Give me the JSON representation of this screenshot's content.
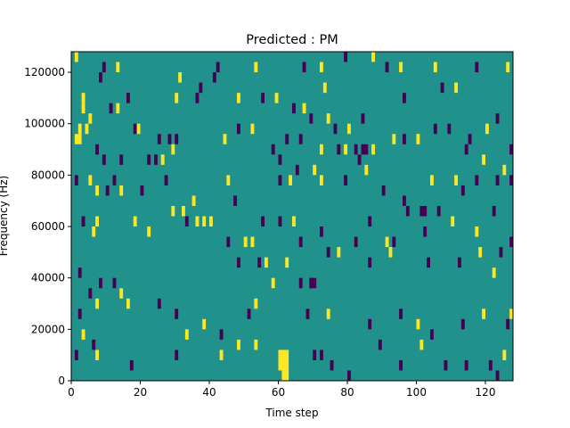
{
  "chart_data": {
    "type": "heatmap",
    "title": "Predicted : PM",
    "xlabel": "Time step",
    "ylabel": "Frequency (Hz)",
    "xlim": [
      0,
      128
    ],
    "ylim": [
      0,
      128000
    ],
    "xticks": [
      0,
      20,
      40,
      60,
      80,
      100,
      120
    ],
    "yticks": [
      0,
      20000,
      40000,
      60000,
      80000,
      100000,
      120000
    ],
    "xtick_labels": [
      "0",
      "20",
      "40",
      "60",
      "80",
      "100",
      "120"
    ],
    "ytick_labels": [
      "0",
      "20000",
      "40000",
      "60000",
      "80000",
      "100000",
      "120000"
    ],
    "grid": false,
    "colormap": "viridis",
    "colors": {
      "background": "#21918c",
      "low": "#440154",
      "high": "#fde725"
    },
    "cell_height": 4000,
    "sparse_cells": [
      {
        "x": 1,
        "y": 124000,
        "v": "high"
      },
      {
        "x": 9,
        "y": 120000,
        "v": "low"
      },
      {
        "x": 13,
        "y": 120000,
        "v": "high"
      },
      {
        "x": 8,
        "y": 116000,
        "v": "low"
      },
      {
        "x": 31,
        "y": 116000,
        "v": "high"
      },
      {
        "x": 41,
        "y": 116000,
        "v": "low"
      },
      {
        "x": 42,
        "y": 120000,
        "v": "low"
      },
      {
        "x": 53,
        "y": 120000,
        "v": "high"
      },
      {
        "x": 67,
        "y": 120000,
        "v": "low"
      },
      {
        "x": 72,
        "y": 120000,
        "v": "high"
      },
      {
        "x": 79,
        "y": 124000,
        "v": "low"
      },
      {
        "x": 87,
        "y": 124000,
        "v": "high"
      },
      {
        "x": 91,
        "y": 120000,
        "v": "low"
      },
      {
        "x": 95,
        "y": 120000,
        "v": "high"
      },
      {
        "x": 105,
        "y": 120000,
        "v": "high"
      },
      {
        "x": 117,
        "y": 120000,
        "v": "low"
      },
      {
        "x": 126,
        "y": 120000,
        "v": "high"
      },
      {
        "x": 3,
        "y": 108000,
        "v": "high"
      },
      {
        "x": 3,
        "y": 104000,
        "v": "high"
      },
      {
        "x": 16,
        "y": 108000,
        "v": "low"
      },
      {
        "x": 11,
        "y": 104000,
        "v": "low"
      },
      {
        "x": 13,
        "y": 104000,
        "v": "high"
      },
      {
        "x": 30,
        "y": 108000,
        "v": "high"
      },
      {
        "x": 36,
        "y": 108000,
        "v": "low"
      },
      {
        "x": 37,
        "y": 112000,
        "v": "low"
      },
      {
        "x": 48,
        "y": 108000,
        "v": "high"
      },
      {
        "x": 55,
        "y": 108000,
        "v": "low"
      },
      {
        "x": 59,
        "y": 108000,
        "v": "high"
      },
      {
        "x": 64,
        "y": 104000,
        "v": "low"
      },
      {
        "x": 67,
        "y": 104000,
        "v": "high"
      },
      {
        "x": 73,
        "y": 112000,
        "v": "high"
      },
      {
        "x": 96,
        "y": 108000,
        "v": "low"
      },
      {
        "x": 107,
        "y": 112000,
        "v": "low"
      },
      {
        "x": 111,
        "y": 112000,
        "v": "high"
      },
      {
        "x": 2,
        "y": 96000,
        "v": "high"
      },
      {
        "x": 4,
        "y": 96000,
        "v": "high"
      },
      {
        "x": 5,
        "y": 100000,
        "v": "high"
      },
      {
        "x": 18,
        "y": 96000,
        "v": "low"
      },
      {
        "x": 19,
        "y": 96000,
        "v": "high"
      },
      {
        "x": 25,
        "y": 92000,
        "v": "low"
      },
      {
        "x": 28,
        "y": 92000,
        "v": "low"
      },
      {
        "x": 30,
        "y": 92000,
        "v": "low"
      },
      {
        "x": 44,
        "y": 92000,
        "v": "high"
      },
      {
        "x": 48,
        "y": 96000,
        "v": "low"
      },
      {
        "x": 52,
        "y": 96000,
        "v": "high"
      },
      {
        "x": 62,
        "y": 92000,
        "v": "low"
      },
      {
        "x": 66,
        "y": 92000,
        "v": "low"
      },
      {
        "x": 69,
        "y": 100000,
        "v": "low"
      },
      {
        "x": 74,
        "y": 100000,
        "v": "high"
      },
      {
        "x": 76,
        "y": 96000,
        "v": "low"
      },
      {
        "x": 80,
        "y": 96000,
        "v": "high"
      },
      {
        "x": 84,
        "y": 100000,
        "v": "low"
      },
      {
        "x": 93,
        "y": 92000,
        "v": "high"
      },
      {
        "x": 96,
        "y": 92000,
        "v": "low"
      },
      {
        "x": 100,
        "y": 92000,
        "v": "high"
      },
      {
        "x": 105,
        "y": 96000,
        "v": "low"
      },
      {
        "x": 109,
        "y": 96000,
        "v": "low"
      },
      {
        "x": 115,
        "y": 92000,
        "v": "low"
      },
      {
        "x": 120,
        "y": 96000,
        "v": "high"
      },
      {
        "x": 123,
        "y": 100000,
        "v": "low"
      },
      {
        "x": 7,
        "y": 88000,
        "v": "low"
      },
      {
        "x": 9,
        "y": 84000,
        "v": "low"
      },
      {
        "x": 14,
        "y": 84000,
        "v": "low"
      },
      {
        "x": 22,
        "y": 84000,
        "v": "low"
      },
      {
        "x": 24,
        "y": 84000,
        "v": "low"
      },
      {
        "x": 26,
        "y": 84000,
        "v": "high"
      },
      {
        "x": 29,
        "y": 88000,
        "v": "high"
      },
      {
        "x": 58,
        "y": 88000,
        "v": "low"
      },
      {
        "x": 60,
        "y": 84000,
        "v": "low"
      },
      {
        "x": 72,
        "y": 88000,
        "v": "high"
      },
      {
        "x": 77,
        "y": 88000,
        "v": "low"
      },
      {
        "x": 79,
        "y": 88000,
        "v": "high"
      },
      {
        "x": 82,
        "y": 88000,
        "v": "low"
      },
      {
        "x": 83,
        "y": 84000,
        "v": "low"
      },
      {
        "x": 87,
        "y": 88000,
        "v": "high"
      },
      {
        "x": 114,
        "y": 88000,
        "v": "low"
      },
      {
        "x": 119,
        "y": 84000,
        "v": "high"
      },
      {
        "x": 127,
        "y": 88000,
        "v": "low"
      },
      {
        "x": 1,
        "y": 76000,
        "v": "low"
      },
      {
        "x": 5,
        "y": 76000,
        "v": "high"
      },
      {
        "x": 7,
        "y": 72000,
        "v": "high"
      },
      {
        "x": 10,
        "y": 72000,
        "v": "low"
      },
      {
        "x": 12,
        "y": 76000,
        "v": "low"
      },
      {
        "x": 14,
        "y": 72000,
        "v": "high"
      },
      {
        "x": 20,
        "y": 72000,
        "v": "low"
      },
      {
        "x": 27,
        "y": 76000,
        "v": "low"
      },
      {
        "x": 35,
        "y": 68000,
        "v": "high"
      },
      {
        "x": 45,
        "y": 76000,
        "v": "high"
      },
      {
        "x": 47,
        "y": 68000,
        "v": "low"
      },
      {
        "x": 60,
        "y": 76000,
        "v": "low"
      },
      {
        "x": 63,
        "y": 76000,
        "v": "high"
      },
      {
        "x": 65,
        "y": 80000,
        "v": "low"
      },
      {
        "x": 70,
        "y": 80000,
        "v": "high"
      },
      {
        "x": 72,
        "y": 76000,
        "v": "high"
      },
      {
        "x": 79,
        "y": 76000,
        "v": "low"
      },
      {
        "x": 85,
        "y": 80000,
        "v": "high"
      },
      {
        "x": 90,
        "y": 72000,
        "v": "low"
      },
      {
        "x": 96,
        "y": 68000,
        "v": "low"
      },
      {
        "x": 104,
        "y": 76000,
        "v": "high"
      },
      {
        "x": 111,
        "y": 76000,
        "v": "high"
      },
      {
        "x": 113,
        "y": 72000,
        "v": "low"
      },
      {
        "x": 117,
        "y": 76000,
        "v": "low"
      },
      {
        "x": 123,
        "y": 76000,
        "v": "low"
      },
      {
        "x": 125,
        "y": 80000,
        "v": "high"
      },
      {
        "x": 127,
        "y": 76000,
        "v": "low"
      },
      {
        "x": 3,
        "y": 60000,
        "v": "low"
      },
      {
        "x": 6,
        "y": 56000,
        "v": "high"
      },
      {
        "x": 7,
        "y": 60000,
        "v": "high"
      },
      {
        "x": 18,
        "y": 60000,
        "v": "high"
      },
      {
        "x": 22,
        "y": 56000,
        "v": "high"
      },
      {
        "x": 29,
        "y": 64000,
        "v": "high"
      },
      {
        "x": 32,
        "y": 64000,
        "v": "high"
      },
      {
        "x": 33,
        "y": 60000,
        "v": "low"
      },
      {
        "x": 36,
        "y": 60000,
        "v": "high"
      },
      {
        "x": 38,
        "y": 60000,
        "v": "high"
      },
      {
        "x": 40,
        "y": 60000,
        "v": "high"
      },
      {
        "x": 45,
        "y": 52000,
        "v": "low"
      },
      {
        "x": 50,
        "y": 52000,
        "v": "high"
      },
      {
        "x": 52,
        "y": 52000,
        "v": "high"
      },
      {
        "x": 55,
        "y": 60000,
        "v": "low"
      },
      {
        "x": 60,
        "y": 60000,
        "v": "low"
      },
      {
        "x": 64,
        "y": 60000,
        "v": "high"
      },
      {
        "x": 66,
        "y": 52000,
        "v": "low"
      },
      {
        "x": 72,
        "y": 56000,
        "v": "low"
      },
      {
        "x": 82,
        "y": 52000,
        "v": "low"
      },
      {
        "x": 86,
        "y": 60000,
        "v": "low"
      },
      {
        "x": 91,
        "y": 52000,
        "v": "high"
      },
      {
        "x": 93,
        "y": 52000,
        "v": "low"
      },
      {
        "x": 97,
        "y": 64000,
        "v": "low"
      },
      {
        "x": 102,
        "y": 56000,
        "v": "low"
      },
      {
        "x": 106,
        "y": 64000,
        "v": "low"
      },
      {
        "x": 110,
        "y": 60000,
        "v": "high"
      },
      {
        "x": 117,
        "y": 56000,
        "v": "high"
      },
      {
        "x": 122,
        "y": 64000,
        "v": "low"
      },
      {
        "x": 127,
        "y": 52000,
        "v": "low"
      },
      {
        "x": 2,
        "y": 40000,
        "v": "low"
      },
      {
        "x": 5,
        "y": 32000,
        "v": "low"
      },
      {
        "x": 8,
        "y": 36000,
        "v": "low"
      },
      {
        "x": 12,
        "y": 36000,
        "v": "low"
      },
      {
        "x": 14,
        "y": 32000,
        "v": "high"
      },
      {
        "x": 48,
        "y": 44000,
        "v": "low"
      },
      {
        "x": 54,
        "y": 44000,
        "v": "low"
      },
      {
        "x": 56,
        "y": 44000,
        "v": "high"
      },
      {
        "x": 58,
        "y": 36000,
        "v": "high"
      },
      {
        "x": 62,
        "y": 44000,
        "v": "high"
      },
      {
        "x": 66,
        "y": 36000,
        "v": "low"
      },
      {
        "x": 69,
        "y": 36000,
        "v": "low"
      },
      {
        "x": 74,
        "y": 48000,
        "v": "low"
      },
      {
        "x": 77,
        "y": 48000,
        "v": "high"
      },
      {
        "x": 86,
        "y": 44000,
        "v": "low"
      },
      {
        "x": 92,
        "y": 48000,
        "v": "high"
      },
      {
        "x": 103,
        "y": 44000,
        "v": "low"
      },
      {
        "x": 112,
        "y": 44000,
        "v": "low"
      },
      {
        "x": 118,
        "y": 48000,
        "v": "high"
      },
      {
        "x": 122,
        "y": 40000,
        "v": "high"
      },
      {
        "x": 124,
        "y": 48000,
        "v": "low"
      },
      {
        "x": 2,
        "y": 24000,
        "v": "low"
      },
      {
        "x": 3,
        "y": 16000,
        "v": "high"
      },
      {
        "x": 7,
        "y": 28000,
        "v": "high"
      },
      {
        "x": 16,
        "y": 28000,
        "v": "high"
      },
      {
        "x": 25,
        "y": 28000,
        "v": "low"
      },
      {
        "x": 30,
        "y": 24000,
        "v": "low"
      },
      {
        "x": 33,
        "y": 16000,
        "v": "high"
      },
      {
        "x": 38,
        "y": 20000,
        "v": "high"
      },
      {
        "x": 43,
        "y": 16000,
        "v": "low"
      },
      {
        "x": 48,
        "y": 12000,
        "v": "high"
      },
      {
        "x": 51,
        "y": 24000,
        "v": "low"
      },
      {
        "x": 53,
        "y": 28000,
        "v": "high"
      },
      {
        "x": 68,
        "y": 24000,
        "v": "low"
      },
      {
        "x": 74,
        "y": 24000,
        "v": "high"
      },
      {
        "x": 86,
        "y": 20000,
        "v": "low"
      },
      {
        "x": 89,
        "y": 12000,
        "v": "low"
      },
      {
        "x": 95,
        "y": 24000,
        "v": "low"
      },
      {
        "x": 100,
        "y": 20000,
        "v": "high"
      },
      {
        "x": 104,
        "y": 16000,
        "v": "low"
      },
      {
        "x": 113,
        "y": 20000,
        "v": "low"
      },
      {
        "x": 119,
        "y": 24000,
        "v": "high"
      },
      {
        "x": 126,
        "y": 20000,
        "v": "low"
      },
      {
        "x": 127,
        "y": 24000,
        "v": "high"
      },
      {
        "x": 1,
        "y": 8000,
        "v": "low"
      },
      {
        "x": 6,
        "y": 12000,
        "v": "low"
      },
      {
        "x": 7,
        "y": 8000,
        "v": "high"
      },
      {
        "x": 17,
        "y": 4000,
        "v": "low"
      },
      {
        "x": 30,
        "y": 8000,
        "v": "low"
      },
      {
        "x": 43,
        "y": 8000,
        "v": "high"
      },
      {
        "x": 53,
        "y": 12000,
        "v": "high"
      },
      {
        "x": 70,
        "y": 8000,
        "v": "low"
      },
      {
        "x": 72,
        "y": 8000,
        "v": "low"
      },
      {
        "x": 75,
        "y": 4000,
        "v": "low"
      },
      {
        "x": 80,
        "y": 0,
        "v": "low"
      },
      {
        "x": 95,
        "y": 4000,
        "v": "low"
      },
      {
        "x": 101,
        "y": 12000,
        "v": "high"
      },
      {
        "x": 108,
        "y": 4000,
        "v": "low"
      },
      {
        "x": 114,
        "y": 4000,
        "v": "low"
      },
      {
        "x": 121,
        "y": 4000,
        "v": "low"
      },
      {
        "x": 123,
        "y": 0,
        "v": "low"
      },
      {
        "x": 125,
        "y": 8000,
        "v": "high"
      }
    ],
    "blocks": [
      {
        "x": 1,
        "w": 2,
        "y": 92000,
        "h": 4000,
        "v": "high"
      },
      {
        "x": 60,
        "w": 3,
        "y": 4000,
        "h": 8000,
        "v": "high"
      },
      {
        "x": 61,
        "w": 2,
        "y": 0,
        "h": 4000,
        "v": "high"
      },
      {
        "x": 84,
        "w": 2,
        "y": 88000,
        "h": 4000,
        "v": "low"
      },
      {
        "x": 101,
        "w": 2,
        "y": 64000,
        "h": 4000,
        "v": "low"
      },
      {
        "x": 69,
        "w": 2,
        "y": 36000,
        "h": 4000,
        "v": "low"
      }
    ]
  }
}
